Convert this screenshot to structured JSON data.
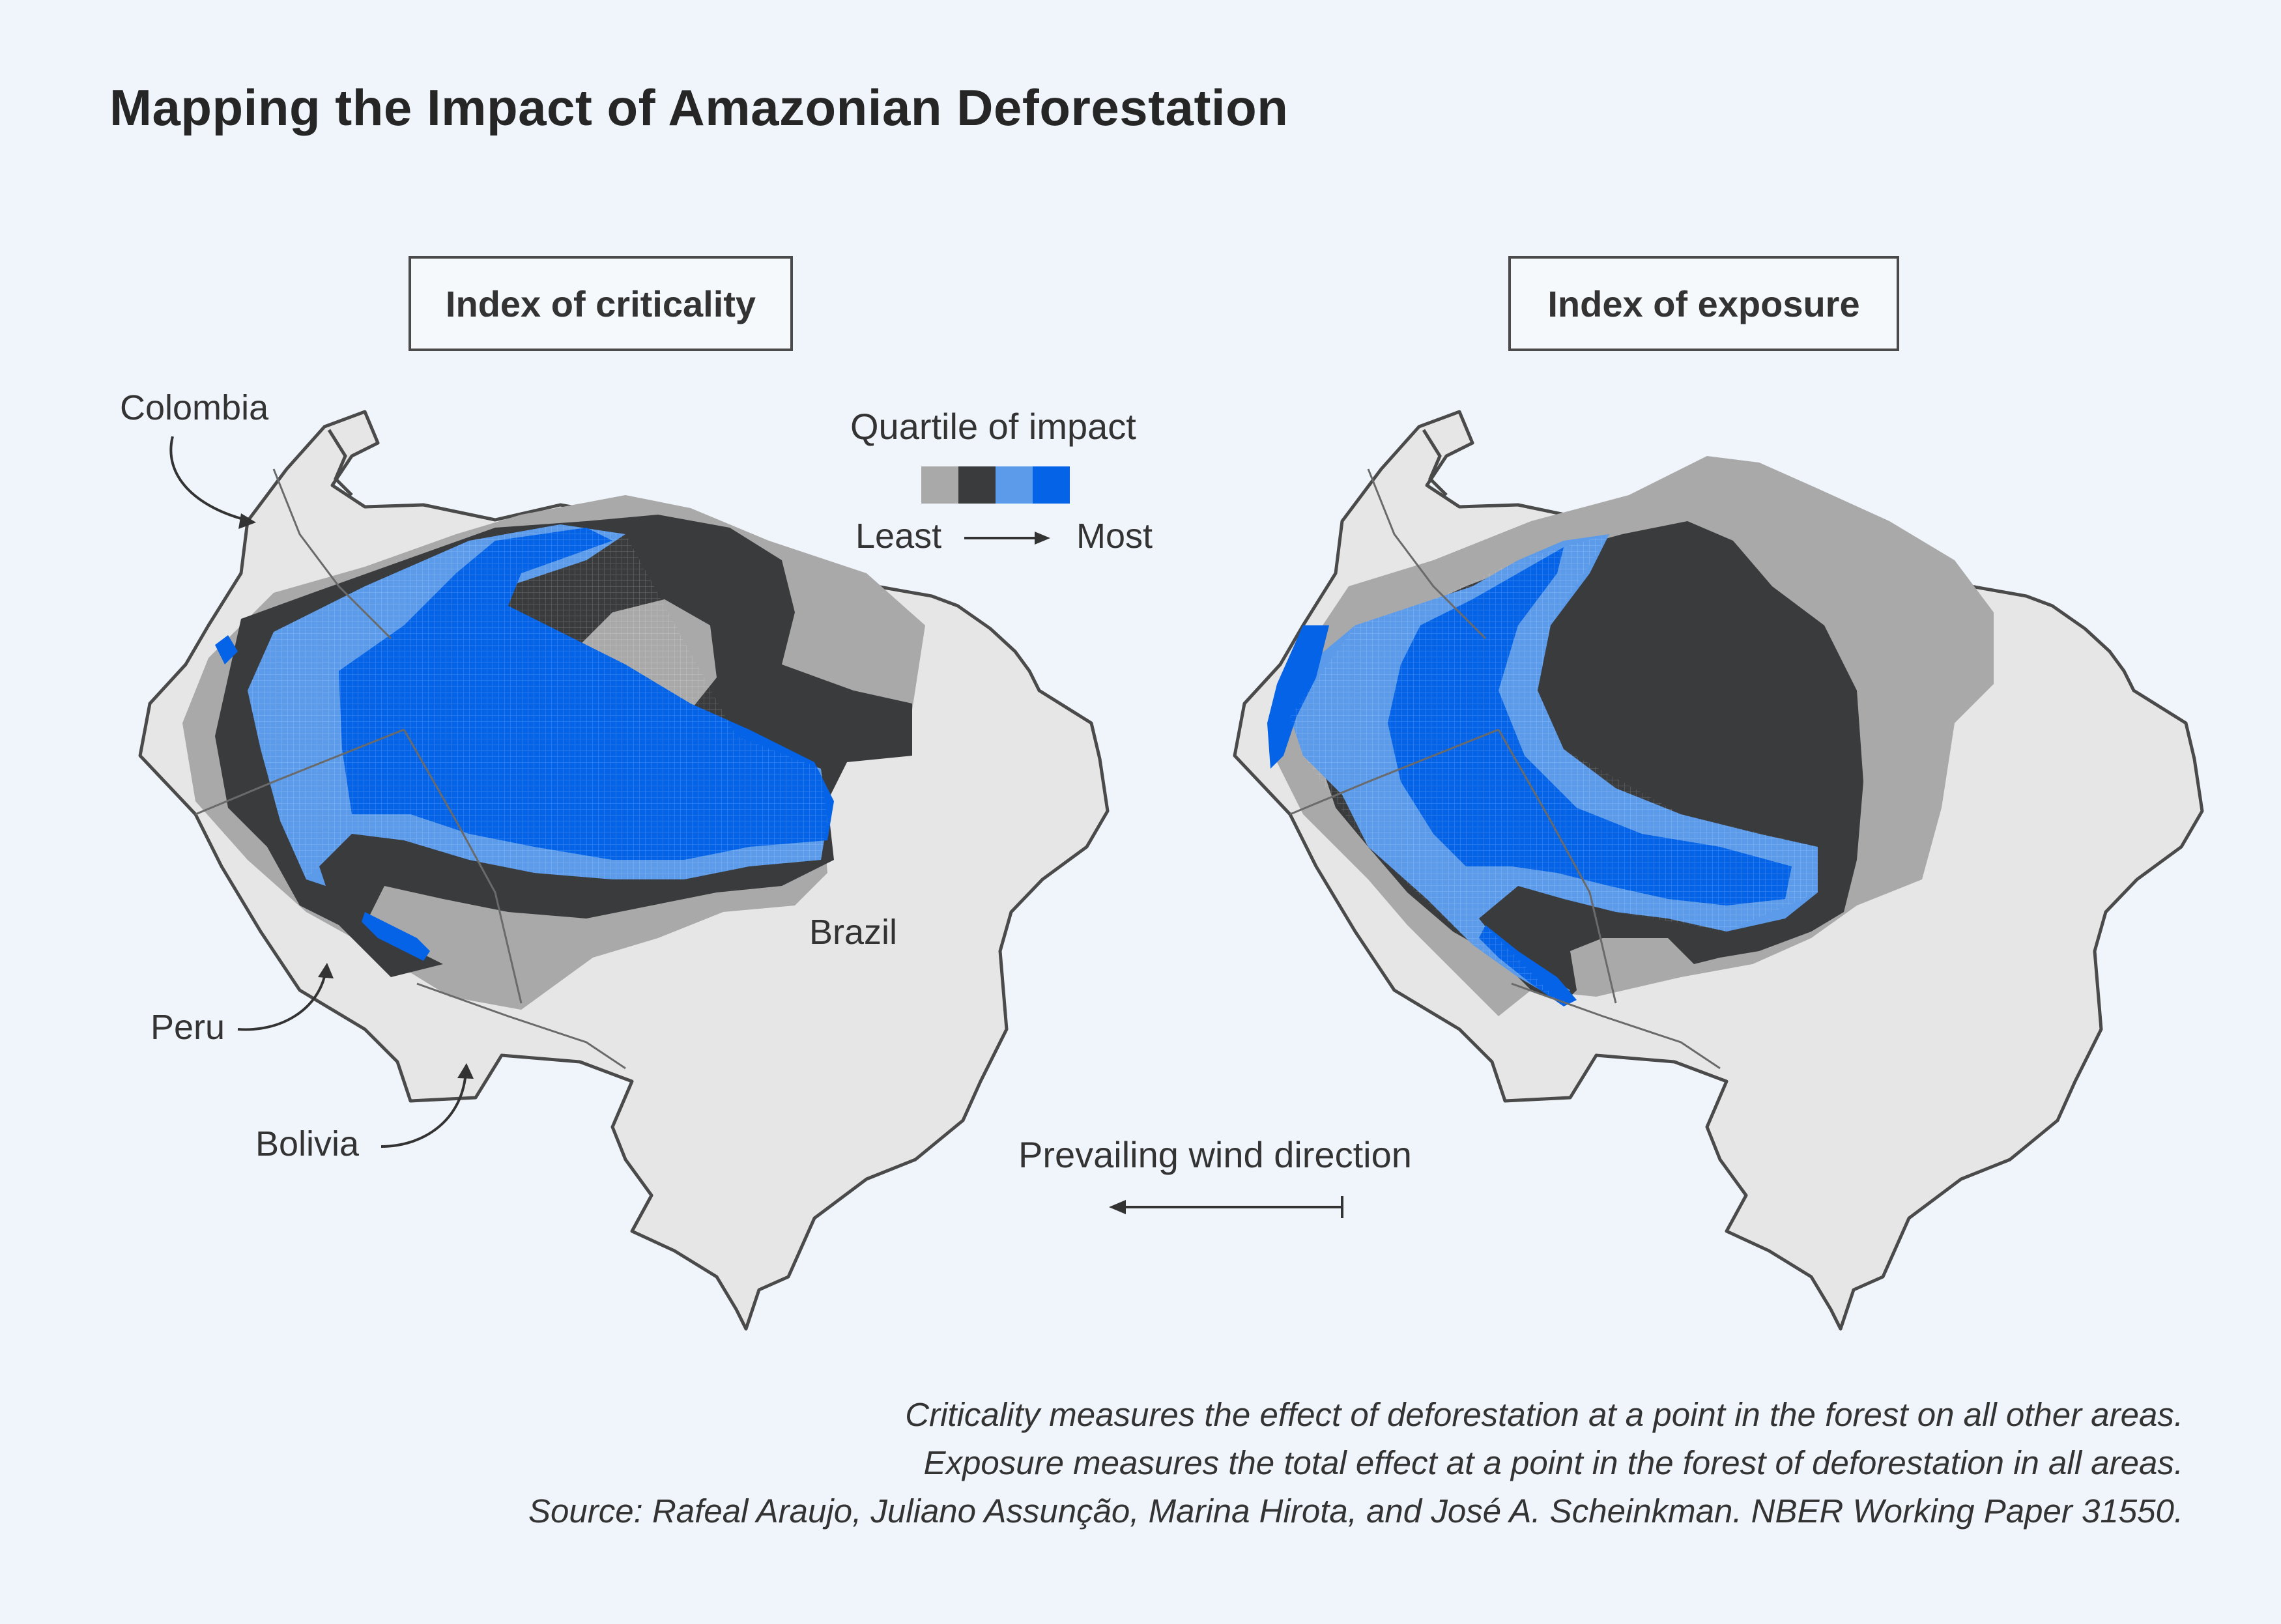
{
  "title": "Mapping the Impact of Amazonian Deforestation",
  "panels": {
    "left_title": "Index of criticality",
    "right_title": "Index of exposure"
  },
  "legend": {
    "title": "Quartile of impact",
    "least_label": "Least",
    "most_label": "Most",
    "colors": [
      "#a9a9a9",
      "#3a3b3d",
      "#5b9bea",
      "#0463e6"
    ]
  },
  "countries": {
    "colombia": "Colombia",
    "peru": "Peru",
    "bolivia": "Bolivia",
    "brazil": "Brazil"
  },
  "wind": {
    "label": "Prevailing wind direction",
    "direction": "east-to-west"
  },
  "notes": {
    "line1": "Criticality measures the effect of deforestation at a point in the forest on all other areas.",
    "line2": "Exposure measures the total effect at a point in the forest of deforestation in all areas.",
    "source": "Source: Rafeal Araujo, Juliano Assunção, Marina Hirota, and José A. Scheinkman. NBER Working Paper 31550."
  },
  "colors": {
    "background": "#f0f5fb",
    "land": "#e6e6e6",
    "outline": "#4a4a4a"
  }
}
